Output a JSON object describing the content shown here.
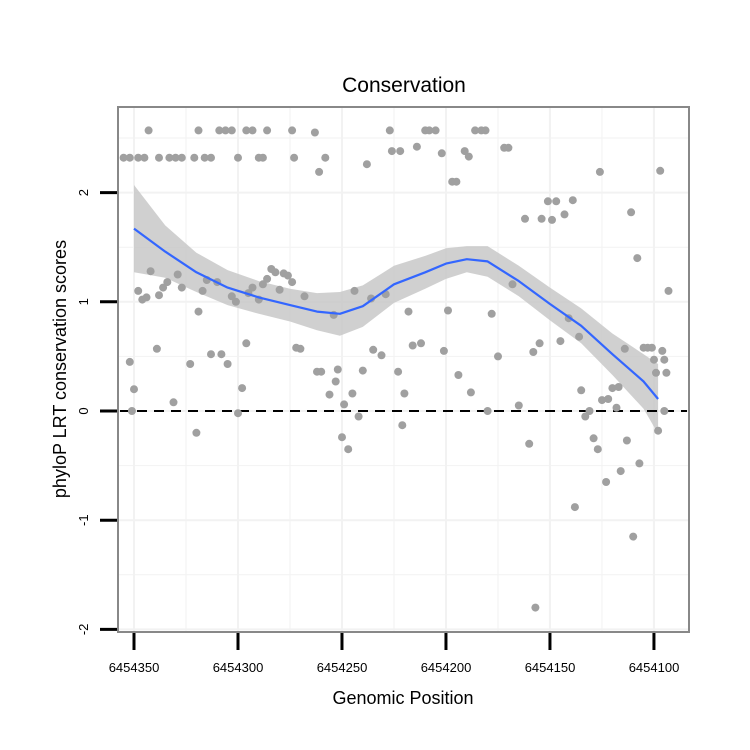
{
  "chart_data": {
    "type": "scatter",
    "title": "Conservation",
    "xlabel": "Genomic Position",
    "ylabel": "phyloP LRT conservation scores",
    "x_reversed": true,
    "xlim": [
      6454355,
      6454093
    ],
    "ylim": [
      -2,
      2.7
    ],
    "x_ticks": [
      6454350,
      6454300,
      6454250,
      6454200,
      6454150,
      6454100
    ],
    "y_ticks": [
      -2,
      -1,
      0,
      1,
      2
    ],
    "reference_line": {
      "y": 0,
      "style": "dashed"
    },
    "colors": {
      "points": "#a0a0a0",
      "smooth_line": "#3366ff",
      "ribbon": "#c8c8c8",
      "panel_border": "#888888",
      "grid": "#f2f2f2"
    },
    "smooth": {
      "x": [
        6454350,
        6454335,
        6454320,
        6454305,
        6454290,
        6454275,
        6454262,
        6454251,
        6454240,
        6454225,
        6454210,
        6454200,
        6454190,
        6454180,
        6454165,
        6454150,
        6454135,
        6454120,
        6454105,
        6454098
      ],
      "y": [
        1.67,
        1.46,
        1.27,
        1.13,
        1.04,
        0.97,
        0.91,
        0.89,
        0.96,
        1.16,
        1.27,
        1.35,
        1.39,
        1.37,
        1.19,
        0.98,
        0.78,
        0.52,
        0.27,
        0.11
      ],
      "lower": [
        1.27,
        1.22,
        1.09,
        0.97,
        0.89,
        0.82,
        0.74,
        0.69,
        0.77,
        0.99,
        1.12,
        1.21,
        1.27,
        1.23,
        1.05,
        0.83,
        0.62,
        0.33,
        0.02,
        -0.21
      ],
      "upper": [
        2.07,
        1.7,
        1.45,
        1.29,
        1.19,
        1.12,
        1.08,
        1.09,
        1.15,
        1.33,
        1.42,
        1.49,
        1.51,
        1.51,
        1.33,
        1.13,
        0.94,
        0.71,
        0.52,
        0.43
      ]
    },
    "points": [
      [
        6454355,
        2.32
      ],
      [
        6454352,
        2.32
      ],
      [
        6454348,
        2.32
      ],
      [
        6454345,
        2.32
      ],
      [
        6454343,
        2.57
      ],
      [
        6454338,
        2.32
      ],
      [
        6454333,
        2.32
      ],
      [
        6454330,
        2.32
      ],
      [
        6454327,
        2.32
      ],
      [
        6454321,
        2.32
      ],
      [
        6454319,
        2.57
      ],
      [
        6454316,
        2.32
      ],
      [
        6454313,
        2.32
      ],
      [
        6454309,
        2.57
      ],
      [
        6454306,
        2.57
      ],
      [
        6454303,
        2.57
      ],
      [
        6454300,
        2.32
      ],
      [
        6454296,
        2.57
      ],
      [
        6454293,
        2.57
      ],
      [
        6454290,
        2.32
      ],
      [
        6454288,
        2.32
      ],
      [
        6454286,
        2.57
      ],
      [
        6454274,
        2.57
      ],
      [
        6454273,
        2.32
      ],
      [
        6454352,
        0.45
      ],
      [
        6454350,
        0.2
      ],
      [
        6454351,
        0.0
      ],
      [
        6454348,
        1.1
      ],
      [
        6454346,
        1.02
      ],
      [
        6454344,
        1.04
      ],
      [
        6454342,
        1.28
      ],
      [
        6454339,
        0.57
      ],
      [
        6454338,
        1.06
      ],
      [
        6454336,
        1.13
      ],
      [
        6454334,
        1.18
      ],
      [
        6454331,
        0.08
      ],
      [
        6454329,
        1.25
      ],
      [
        6454327,
        1.13
      ],
      [
        6454323,
        0.43
      ],
      [
        6454320,
        -0.2
      ],
      [
        6454319,
        0.91
      ],
      [
        6454317,
        1.1
      ],
      [
        6454315,
        1.2
      ],
      [
        6454313,
        0.52
      ],
      [
        6454310,
        1.18
      ],
      [
        6454308,
        0.52
      ],
      [
        6454305,
        0.43
      ],
      [
        6454303,
        1.05
      ],
      [
        6454301,
        1.0
      ],
      [
        6454300,
        -0.02
      ],
      [
        6454298,
        0.21
      ],
      [
        6454296,
        0.62
      ],
      [
        6454295,
        1.08
      ],
      [
        6454293,
        1.13
      ],
      [
        6454290,
        1.02
      ],
      [
        6454288,
        1.16
      ],
      [
        6454286,
        1.21
      ],
      [
        6454284,
        1.3
      ],
      [
        6454282,
        1.27
      ],
      [
        6454280,
        1.11
      ],
      [
        6454278,
        1.26
      ],
      [
        6454276,
        1.24
      ],
      [
        6454274,
        1.18
      ],
      [
        6454272,
        0.58
      ],
      [
        6454270,
        0.57
      ],
      [
        6454268,
        1.05
      ],
      [
        6454263,
        2.55
      ],
      [
        6454261,
        2.19
      ],
      [
        6454258,
        2.32
      ],
      [
        6454254,
        0.88
      ],
      [
        6454252,
        0.38
      ],
      [
        6454260,
        0.36
      ],
      [
        6454262,
        0.36
      ],
      [
        6454256,
        0.15
      ],
      [
        6454253,
        0.27
      ],
      [
        6454250,
        -0.24
      ],
      [
        6454249,
        0.06
      ],
      [
        6454247,
        -0.35
      ],
      [
        6454245,
        0.16
      ],
      [
        6454244,
        1.1
      ],
      [
        6454242,
        -0.05
      ],
      [
        6454240,
        0.37
      ],
      [
        6454238,
        2.26
      ],
      [
        6454236,
        1.03
      ],
      [
        6454235,
        0.56
      ],
      [
        6454231,
        0.51
      ],
      [
        6454229,
        1.07
      ],
      [
        6454227,
        2.57
      ],
      [
        6454226,
        2.38
      ],
      [
        6454222,
        2.38
      ],
      [
        6454223,
        0.36
      ],
      [
        6454221,
        -0.13
      ],
      [
        6454220,
        0.16
      ],
      [
        6454218,
        0.91
      ],
      [
        6454216,
        0.6
      ],
      [
        6454214,
        2.42
      ],
      [
        6454212,
        0.62
      ],
      [
        6454210,
        2.57
      ],
      [
        6454208,
        2.57
      ],
      [
        6454205,
        2.57
      ],
      [
        6454202,
        2.36
      ],
      [
        6454201,
        0.55
      ],
      [
        6454199,
        0.92
      ],
      [
        6454197,
        2.1
      ],
      [
        6454195,
        2.1
      ],
      [
        6454194,
        0.33
      ],
      [
        6454191,
        2.38
      ],
      [
        6454189,
        2.33
      ],
      [
        6454188,
        0.17
      ],
      [
        6454186,
        2.57
      ],
      [
        6454183,
        2.57
      ],
      [
        6454181,
        2.57
      ],
      [
        6454180,
        0.0
      ],
      [
        6454178,
        0.89
      ],
      [
        6454175,
        0.5
      ],
      [
        6454172,
        2.41
      ],
      [
        6454170,
        2.41
      ],
      [
        6454168,
        1.16
      ],
      [
        6454165,
        0.05
      ],
      [
        6454162,
        1.76
      ],
      [
        6454160,
        -0.3
      ],
      [
        6454158,
        0.54
      ],
      [
        6454157,
        -1.8
      ],
      [
        6454155,
        0.62
      ],
      [
        6454154,
        1.76
      ],
      [
        6454151,
        1.92
      ],
      [
        6454149,
        1.75
      ],
      [
        6454147,
        1.92
      ],
      [
        6454145,
        0.64
      ],
      [
        6454143,
        1.8
      ],
      [
        6454141,
        0.85
      ],
      [
        6454139,
        1.93
      ],
      [
        6454138,
        -0.88
      ],
      [
        6454136,
        0.68
      ],
      [
        6454135,
        0.19
      ],
      [
        6454133,
        -0.05
      ],
      [
        6454131,
        0.0
      ],
      [
        6454129,
        -0.25
      ],
      [
        6454127,
        -0.35
      ],
      [
        6454126,
        2.19
      ],
      [
        6454125,
        0.1
      ],
      [
        6454123,
        -0.65
      ],
      [
        6454122,
        0.11
      ],
      [
        6454120,
        0.21
      ],
      [
        6454118,
        0.03
      ],
      [
        6454117,
        0.22
      ],
      [
        6454116,
        -0.55
      ],
      [
        6454114,
        0.57
      ],
      [
        6454113,
        -0.27
      ],
      [
        6454111,
        1.82
      ],
      [
        6454110,
        -1.15
      ],
      [
        6454108,
        1.4
      ],
      [
        6454107,
        -0.48
      ],
      [
        6454105,
        0.58
      ],
      [
        6454103,
        0.58
      ],
      [
        6454101,
        0.58
      ],
      [
        6454100,
        0.47
      ],
      [
        6454099,
        0.35
      ],
      [
        6454097,
        2.2
      ],
      [
        6454096,
        0.55
      ],
      [
        6454095,
        0.47
      ],
      [
        6454094,
        0.35
      ],
      [
        6454093,
        1.1
      ],
      [
        6454095,
        0.0
      ],
      [
        6454098,
        -0.18
      ]
    ]
  }
}
